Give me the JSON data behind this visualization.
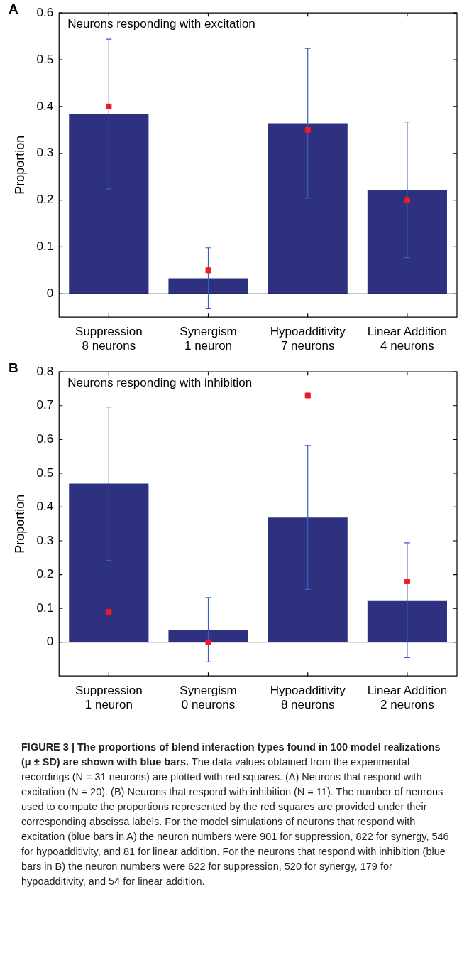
{
  "chart_data": [
    {
      "type": "bar",
      "categories": [
        "Suppression\n8 neurons",
        "Synergism\n1 neuron",
        "Hypoadditivity\n7 neurons",
        "Linear Addition\n4 neurons"
      ],
      "ylabel": "Proportion",
      "ylim": [
        -0.05,
        0.6
      ],
      "yticks": [
        0,
        0.1,
        0.2,
        0.3,
        0.4,
        0.5,
        0.6
      ],
      "annotations": [
        "A",
        "Neurons responding with excitation"
      ],
      "marker": "square",
      "series": [
        {
          "color": "#2e3080",
          "values": [
            0.384,
            0.033,
            0.364,
            0.222
          ],
          "errors": [
            0.16,
            0.065,
            0.16,
            0.145
          ]
        },
        {
          "type": "scatter",
          "color": "#ed1c24",
          "x": [
            "Suppression\n8 neurons",
            "Synergism\n1 neuron",
            "Hypoadditivity\n7 neurons",
            "Linear Addition\n4 neurons"
          ],
          "values": [
            0.4,
            0.05,
            0.35,
            0.2
          ]
        }
      ]
    },
    {
      "type": "bar",
      "categories": [
        "Suppression\n1 neuron",
        "Synergism\n0 neurons",
        "Hypoadditivity\n8 neurons",
        "Linear Addition\n2 neurons"
      ],
      "ylabel": "Proportion",
      "ylim": [
        -0.1,
        0.8
      ],
      "yticks": [
        0,
        0.1,
        0.2,
        0.3,
        0.4,
        0.5,
        0.6,
        0.7,
        0.8
      ],
      "annotations": [
        "B",
        "Neurons responding with inhibition",
        "FIGURE 3 | The proportions of blend interaction types found in 100 model realizations (μ ± SD) are shown with blue bars.",
        "The data values obtained from the experimental recordings (N = 31 neurons) are plotted with red squares. (A) Neurons that respond with excitation (N = 20). (B) Neurons that respond with inhibition (N = 11). The number of neurons used to compute the proportions represented by the red squares are provided under their corresponding abscissa labels. For the model simulations of neurons that respond with excitation (blue bars in A) the neuron numbers were 901 for suppression, 822 for synergy, 546 for hypoadditivity, and 81 for linear addition. For the neurons that respond with inhibition (blue bars in B) the neuron numbers were 622 for suppression, 520 for synergy, 179 for hypoadditivity, and 54 for linear addition."
      ],
      "marker": "square",
      "series": [
        {
          "color": "#2e3080",
          "values": [
            0.469,
            0.037,
            0.369,
            0.124
          ],
          "errors": [
            0.227,
            0.095,
            0.213,
            0.17
          ]
        },
        {
          "type": "scatter",
          "color": "#ed1c24",
          "x": [
            "Suppression\n1 neuron",
            "Synergism\n0 neurons",
            "Hypoadditivity\n8 neurons",
            "Linear Addition\n2 neurons"
          ],
          "values": [
            0.09,
            0,
            0.73,
            0.18
          ]
        }
      ]
    }
  ]
}
